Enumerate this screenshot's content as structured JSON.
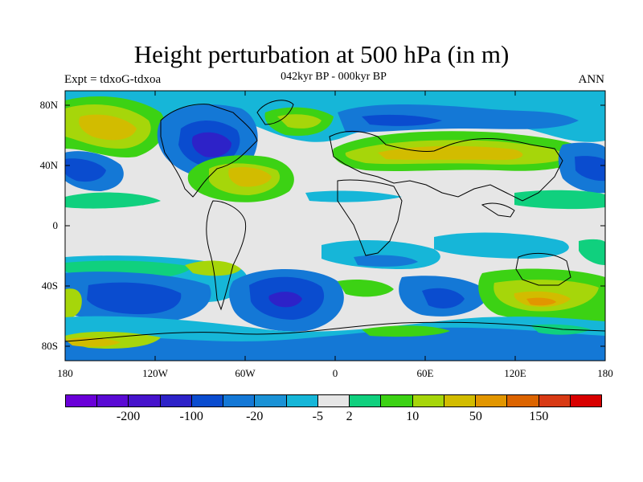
{
  "title": "Height perturbation at 500 hPa (in m)",
  "subtitle_left": "Expt = tdxoG-tdxoa",
  "subtitle_center": "042kyr BP - 000kyr BP",
  "subtitle_right": "ANN",
  "lat_ticks": [
    "80N",
    "40N",
    "0",
    "40S",
    "80S"
  ],
  "lon_ticks": [
    "180",
    "120W",
    "60W",
    "0",
    "60E",
    "120E",
    "180"
  ],
  "colorbar": {
    "colors": [
      "#6a00d8",
      "#5a0ad4",
      "#4613cc",
      "#2d22c8",
      "#0a4ccf",
      "#1478d6",
      "#1a92d6",
      "#16b6d8",
      "#e6e6e6",
      "#10d07e",
      "#3cd214",
      "#a6d60a",
      "#d2bc00",
      "#e29600",
      "#dc6400",
      "#d83a14",
      "#d80000"
    ],
    "labels": [
      "-200",
      "-100",
      "-20",
      "-5",
      "2",
      "10",
      "50",
      "150"
    ]
  },
  "colors": {
    "land_outline": "#000000",
    "neutral": "#e6e6e6",
    "ocean_bg": "#e6e6e6"
  }
}
